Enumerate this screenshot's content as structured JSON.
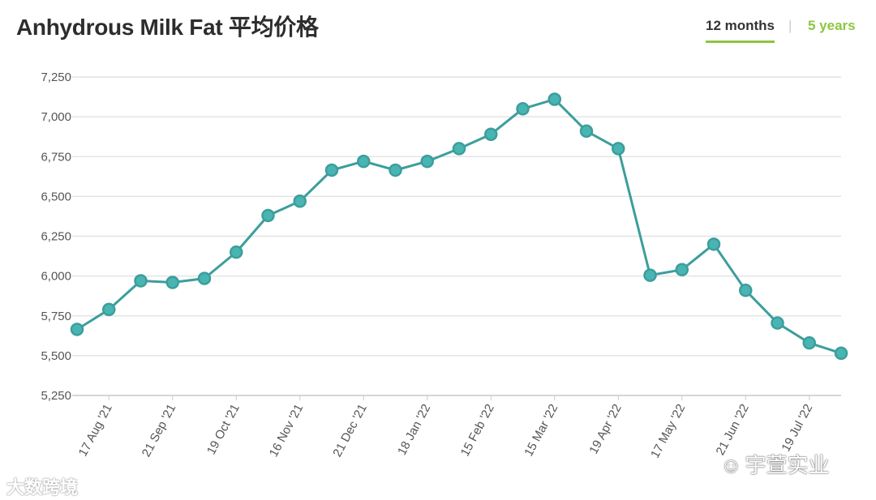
{
  "header": {
    "title": "Anhydrous Milk Fat 平均价格",
    "tabs": [
      {
        "label": "12 months",
        "active": true
      },
      {
        "label": "5 years",
        "active": false
      }
    ],
    "separator": "|"
  },
  "colors": {
    "line": "#3c9e9c",
    "marker_fill": "#49b5b2",
    "grid": "#e4e4e4",
    "accent": "#8cc63f"
  },
  "chart_data": {
    "type": "line",
    "title": "Anhydrous Milk Fat 平均价格",
    "xlabel": "",
    "ylabel": "",
    "ylim": [
      5250,
      7250
    ],
    "yticks": [
      "7,250",
      "7,000",
      "6,750",
      "6,500",
      "6,250",
      "6,000",
      "5,750",
      "5,500",
      "5,250"
    ],
    "ytick_values": [
      7250,
      7000,
      6750,
      6500,
      6250,
      6000,
      5750,
      5500,
      5250
    ],
    "xtick_labels": [
      "17 Aug '21",
      "21 Sep '21",
      "19 Oct '21",
      "16 Nov '21",
      "21 Dec '21",
      "18 Jan '22",
      "15 Feb '22",
      "15 Mar '22",
      "19 Apr '22",
      "17 May '22",
      "21 Jun '22",
      "19 Jul '22"
    ],
    "grid": "horizontal",
    "legend": "none",
    "series": [
      {
        "values": [
          5665,
          5790,
          5970,
          5960,
          5985,
          6150,
          6380,
          6470,
          6665,
          6720,
          6665,
          6720,
          6800,
          6890,
          7050,
          7110,
          6910,
          6800,
          6005,
          6040,
          6200,
          5910,
          5705,
          5580,
          5515
        ]
      }
    ]
  },
  "watermarks": {
    "left": "大数跨境",
    "right": "宇萱实业",
    "right_icon": "wechat-icon"
  }
}
